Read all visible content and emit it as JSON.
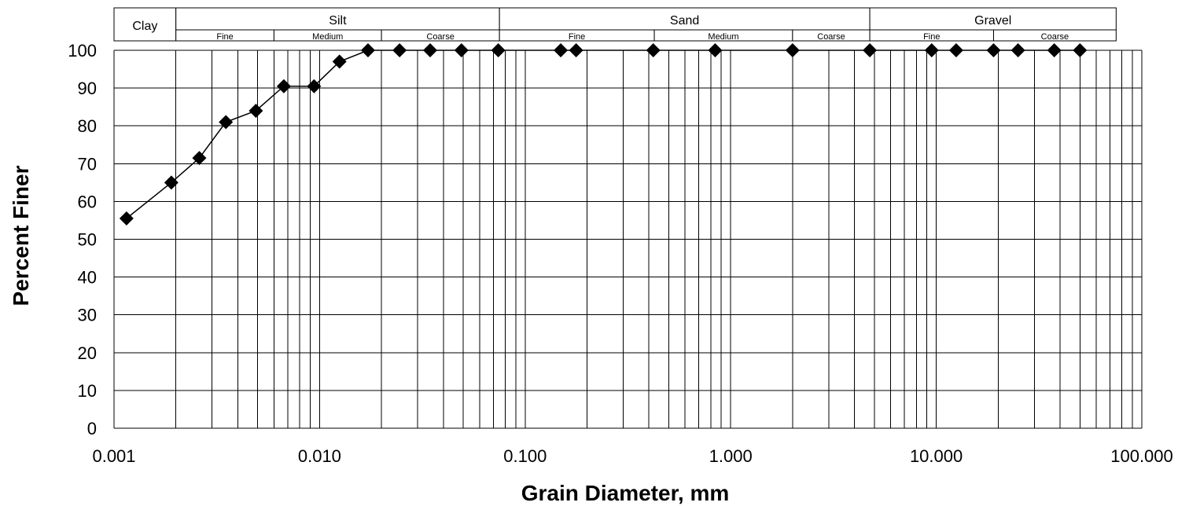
{
  "chart_data": {
    "type": "scatter",
    "xscale": "log",
    "xlim": [
      0.001,
      100
    ],
    "ylim": [
      0,
      100
    ],
    "xlabel": "Grain Diameter, mm",
    "ylabel": "Percent Finer",
    "x_ticks": [
      {
        "value": 0.001,
        "label": "0.001"
      },
      {
        "value": 0.01,
        "label": "0.010"
      },
      {
        "value": 0.1,
        "label": "0.100"
      },
      {
        "value": 1,
        "label": "1.000"
      },
      {
        "value": 10,
        "label": "10.000"
      },
      {
        "value": 100,
        "label": "100.000"
      }
    ],
    "y_ticks": [
      0,
      10,
      20,
      30,
      40,
      50,
      60,
      70,
      80,
      90,
      100
    ],
    "grid": true,
    "marker": "diamond",
    "series": [
      {
        "points": [
          {
            "x": 0.00115,
            "y": 55.5
          },
          {
            "x": 0.0019,
            "y": 65
          },
          {
            "x": 0.0026,
            "y": 71.5
          },
          {
            "x": 0.0035,
            "y": 81
          },
          {
            "x": 0.0049,
            "y": 84
          },
          {
            "x": 0.0067,
            "y": 90.5
          },
          {
            "x": 0.0094,
            "y": 90.5
          },
          {
            "x": 0.0125,
            "y": 97
          },
          {
            "x": 0.0172,
            "y": 100
          },
          {
            "x": 0.0245,
            "y": 100
          },
          {
            "x": 0.0345,
            "y": 100
          },
          {
            "x": 0.049,
            "y": 100
          },
          {
            "x": 0.074,
            "y": 100
          },
          {
            "x": 0.149,
            "y": 100
          },
          {
            "x": 0.177,
            "y": 100
          },
          {
            "x": 0.42,
            "y": 100
          },
          {
            "x": 0.84,
            "y": 100
          },
          {
            "x": 2.0,
            "y": 100
          },
          {
            "x": 4.75,
            "y": 100
          },
          {
            "x": 9.5,
            "y": 100
          },
          {
            "x": 12.5,
            "y": 100
          },
          {
            "x": 19.0,
            "y": 100
          },
          {
            "x": 25.0,
            "y": 100
          },
          {
            "x": 37.5,
            "y": 100
          },
          {
            "x": 50.0,
            "y": 100
          }
        ]
      }
    ],
    "classification_bands": [
      {
        "label": "Clay",
        "from": 0.001,
        "to": 0.002,
        "subdivisions": []
      },
      {
        "label": "Silt",
        "from": 0.002,
        "to": 0.075,
        "subdivisions": [
          {
            "label": "Fine",
            "from": 0.002,
            "to": 0.006
          },
          {
            "label": "Medium",
            "from": 0.006,
            "to": 0.02
          },
          {
            "label": "Coarse",
            "from": 0.02,
            "to": 0.075
          }
        ]
      },
      {
        "label": "Sand",
        "from": 0.075,
        "to": 4.75,
        "subdivisions": [
          {
            "label": "Fine",
            "from": 0.075,
            "to": 0.425
          },
          {
            "label": "Medium",
            "from": 0.425,
            "to": 2.0
          },
          {
            "label": "Coarse",
            "from": 2.0,
            "to": 4.75
          }
        ]
      },
      {
        "label": "Gravel",
        "from": 4.75,
        "to": 75,
        "subdivisions": [
          {
            "label": "Fine",
            "from": 4.75,
            "to": 19
          },
          {
            "label": "Coarse",
            "from": 19,
            "to": 75
          }
        ]
      }
    ]
  }
}
